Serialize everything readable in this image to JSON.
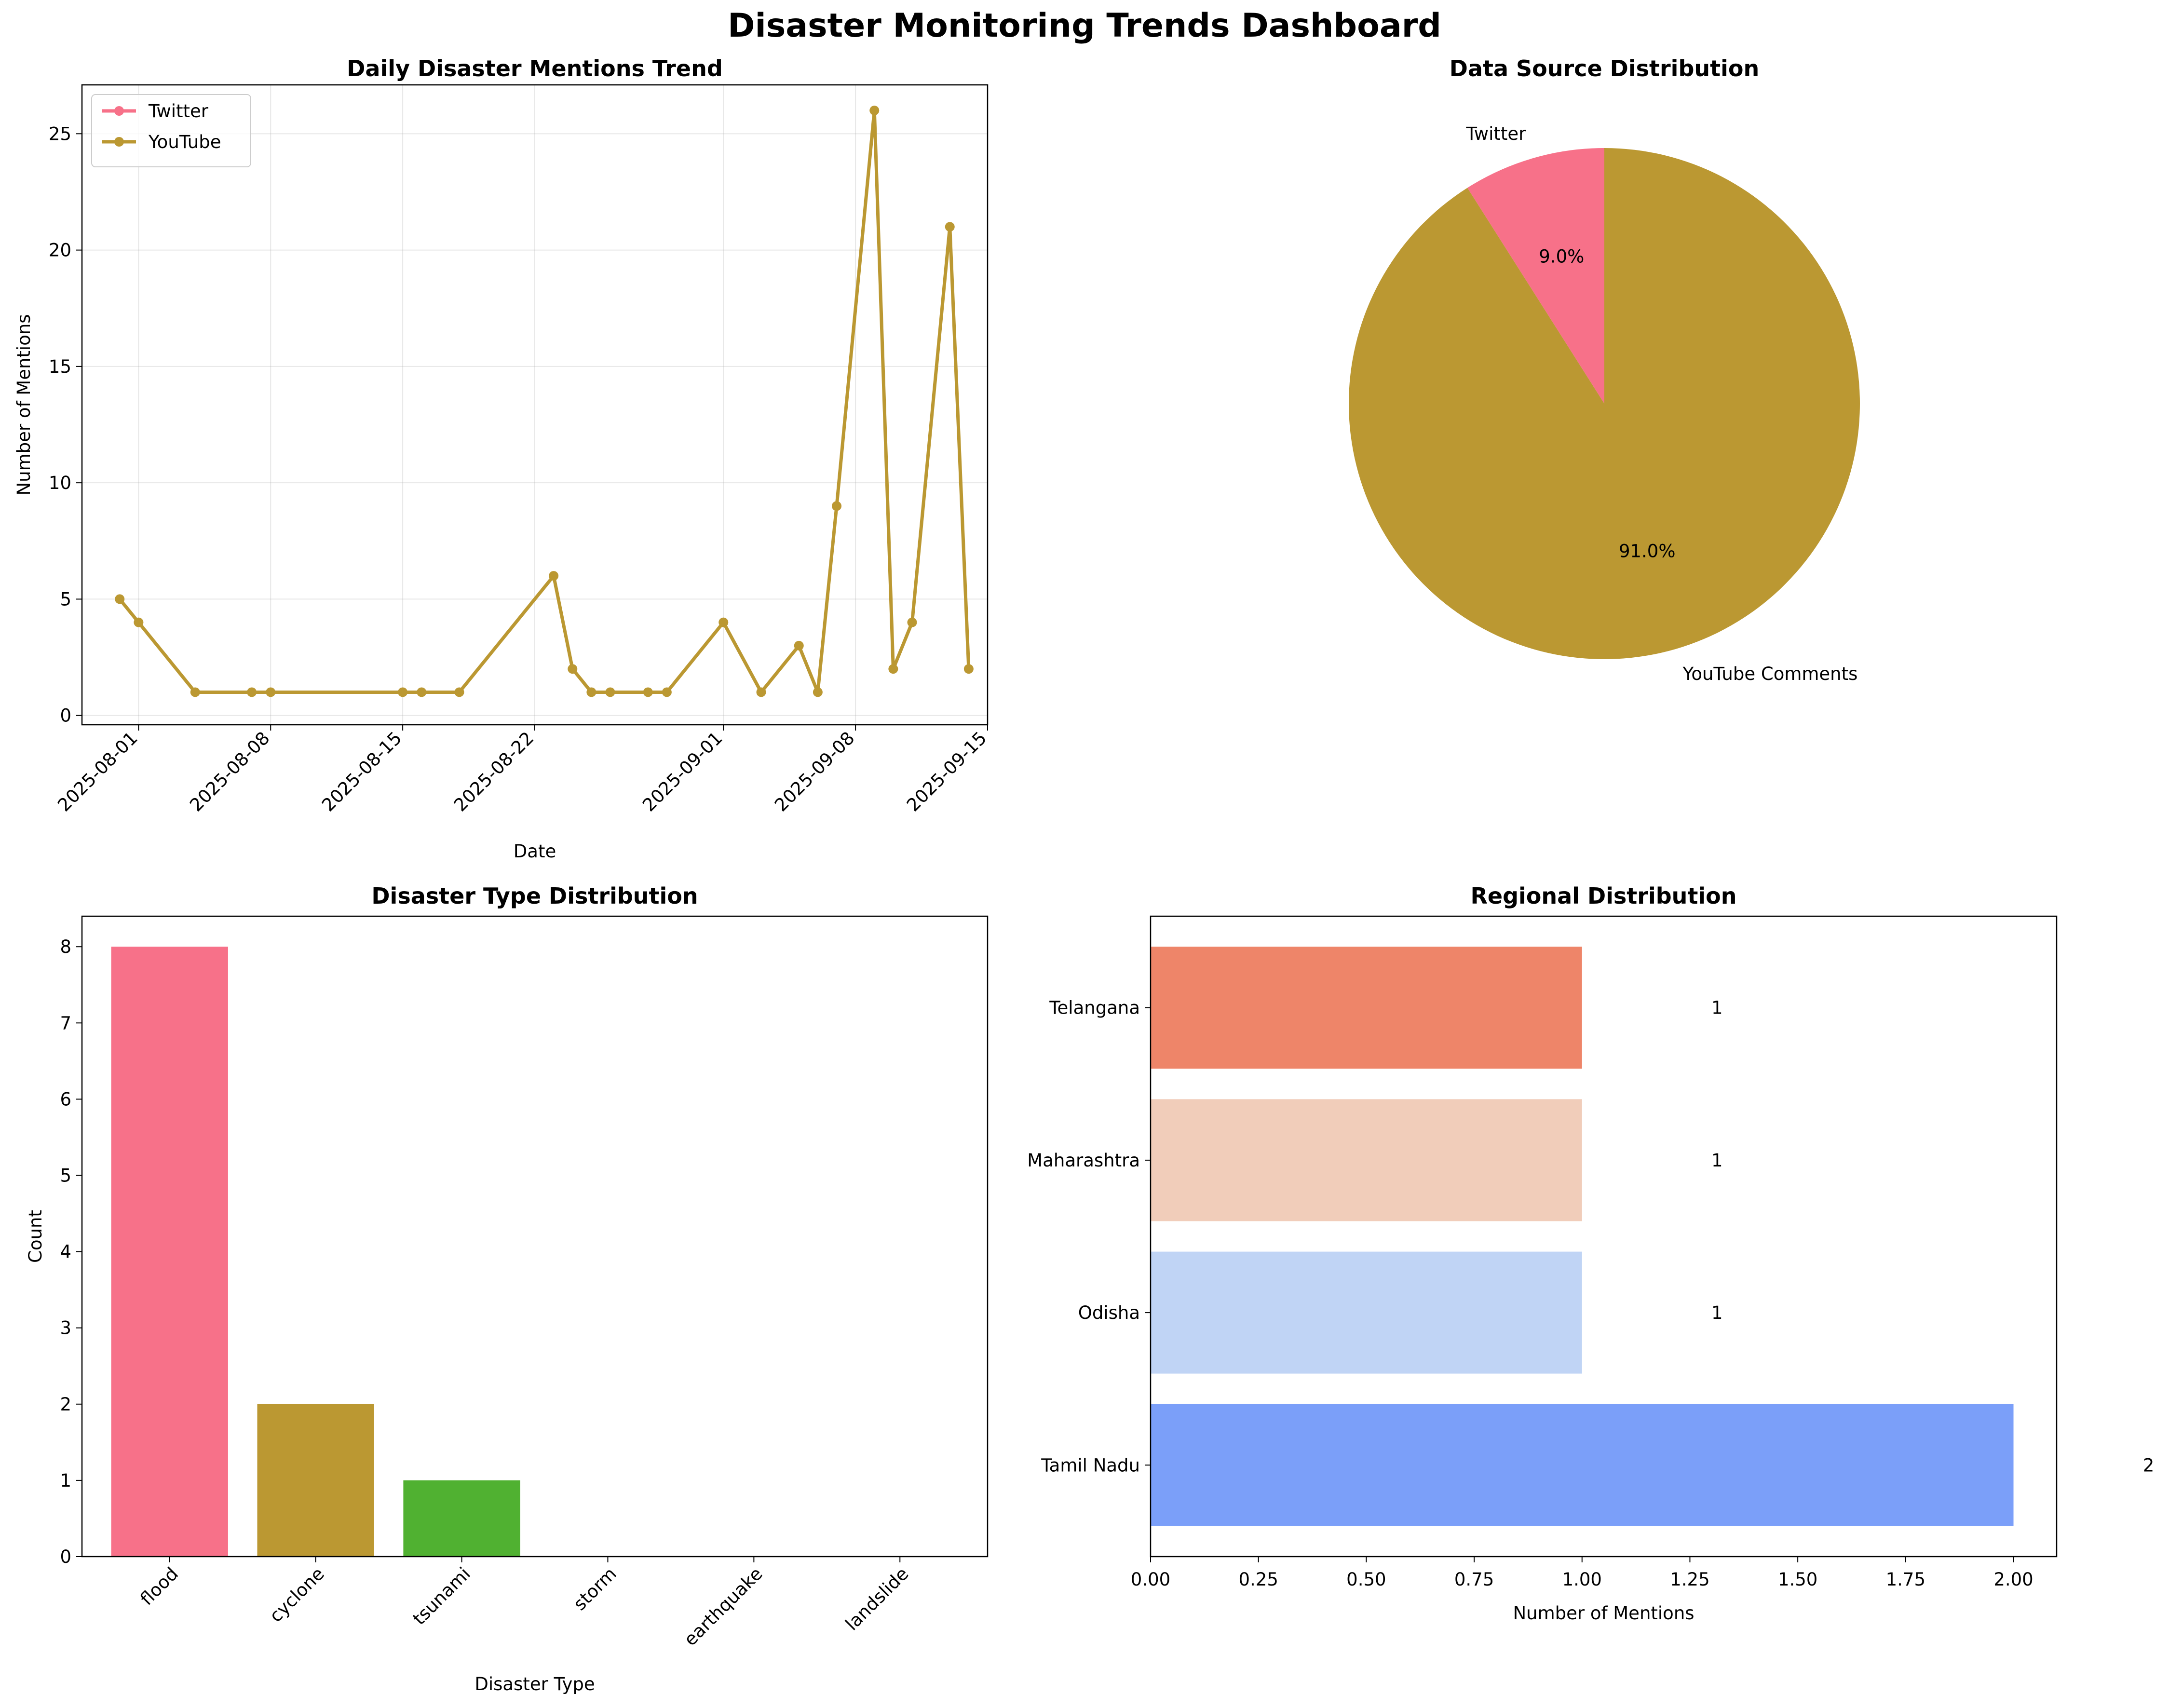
{
  "title": "Disaster Monitoring Trends Dashboard",
  "chart_data": [
    {
      "type": "line",
      "title": "Daily Disaster Mentions Trend",
      "xlabel": "Date",
      "ylabel": "Number of Mentions",
      "xlim": [
        "2025-07-29",
        "2025-09-15"
      ],
      "ylim": [
        -0.4,
        27.1
      ],
      "x_ticks": [
        "2025-08-01",
        "2025-08-08",
        "2025-08-15",
        "2025-08-22",
        "2025-09-01",
        "2025-09-08",
        "2025-09-15"
      ],
      "y_ticks": [
        0,
        5,
        10,
        15,
        20,
        25
      ],
      "grid": true,
      "legend_position": "upper-left",
      "series": [
        {
          "name": "Twitter",
          "color": "#f77189",
          "points": [
            {
              "x": "2025-09-07",
              "y": 9
            }
          ]
        },
        {
          "name": "YouTube",
          "color": "#bb9832",
          "points": [
            {
              "x": "2025-07-31",
              "y": 5
            },
            {
              "x": "2025-08-01",
              "y": 4
            },
            {
              "x": "2025-08-04",
              "y": 1
            },
            {
              "x": "2025-08-07",
              "y": 1
            },
            {
              "x": "2025-08-08",
              "y": 1
            },
            {
              "x": "2025-08-15",
              "y": 1
            },
            {
              "x": "2025-08-16",
              "y": 1
            },
            {
              "x": "2025-08-18",
              "y": 1
            },
            {
              "x": "2025-08-23",
              "y": 6
            },
            {
              "x": "2025-08-24",
              "y": 2
            },
            {
              "x": "2025-08-25",
              "y": 1
            },
            {
              "x": "2025-08-26",
              "y": 1
            },
            {
              "x": "2025-08-28",
              "y": 1
            },
            {
              "x": "2025-08-29",
              "y": 1
            },
            {
              "x": "2025-09-01",
              "y": 4
            },
            {
              "x": "2025-09-03",
              "y": 1
            },
            {
              "x": "2025-09-05",
              "y": 3
            },
            {
              "x": "2025-09-06",
              "y": 1
            },
            {
              "x": "2025-09-07",
              "y": 9
            },
            {
              "x": "2025-09-09",
              "y": 26
            },
            {
              "x": "2025-09-10",
              "y": 2
            },
            {
              "x": "2025-09-11",
              "y": 4
            },
            {
              "x": "2025-09-13",
              "y": 21
            },
            {
              "x": "2025-09-14",
              "y": 2
            }
          ]
        }
      ]
    },
    {
      "type": "pie",
      "title": "Data Source Distribution",
      "start_angle": 90,
      "direction": "counterclockwise",
      "slices": [
        {
          "label": "Twitter",
          "value": 9.0,
          "pct_label": "9.0%",
          "color": "#f77189"
        },
        {
          "label": "YouTube Comments",
          "value": 91.0,
          "pct_label": "91.0%",
          "color": "#bb9832"
        }
      ]
    },
    {
      "type": "bar",
      "title": "Disaster Type Distribution",
      "xlabel": "Disaster Type",
      "ylabel": "Count",
      "categories": [
        "flood",
        "cyclone",
        "tsunami",
        "storm",
        "earthquake",
        "landslide"
      ],
      "values": [
        8,
        2,
        1,
        0,
        0,
        0
      ],
      "colors": [
        "#f77189",
        "#bb9832",
        "#50b131",
        "#36ada4",
        "#3ba3ec",
        "#e866f4"
      ],
      "ylim": [
        0,
        8.4
      ],
      "y_ticks": [
        0,
        1,
        2,
        3,
        4,
        5,
        6,
        7,
        8
      ]
    },
    {
      "type": "bar",
      "orientation": "horizontal",
      "title": "Regional Distribution",
      "xlabel": "Number of Mentions",
      "categories": [
        "Tamil Nadu",
        "Odisha",
        "Maharashtra",
        "Telangana"
      ],
      "values": [
        2,
        1,
        1,
        1
      ],
      "value_labels": [
        "2",
        "1",
        "1",
        "1"
      ],
      "colors": [
        "#7b9ff9",
        "#c0d4f5",
        "#f1cdba",
        "#ee8569"
      ],
      "xlim": [
        0,
        2.1
      ],
      "x_ticks": [
        "0.00",
        "0.25",
        "0.50",
        "0.75",
        "1.00",
        "1.25",
        "1.50",
        "1.75",
        "2.00"
      ]
    }
  ]
}
